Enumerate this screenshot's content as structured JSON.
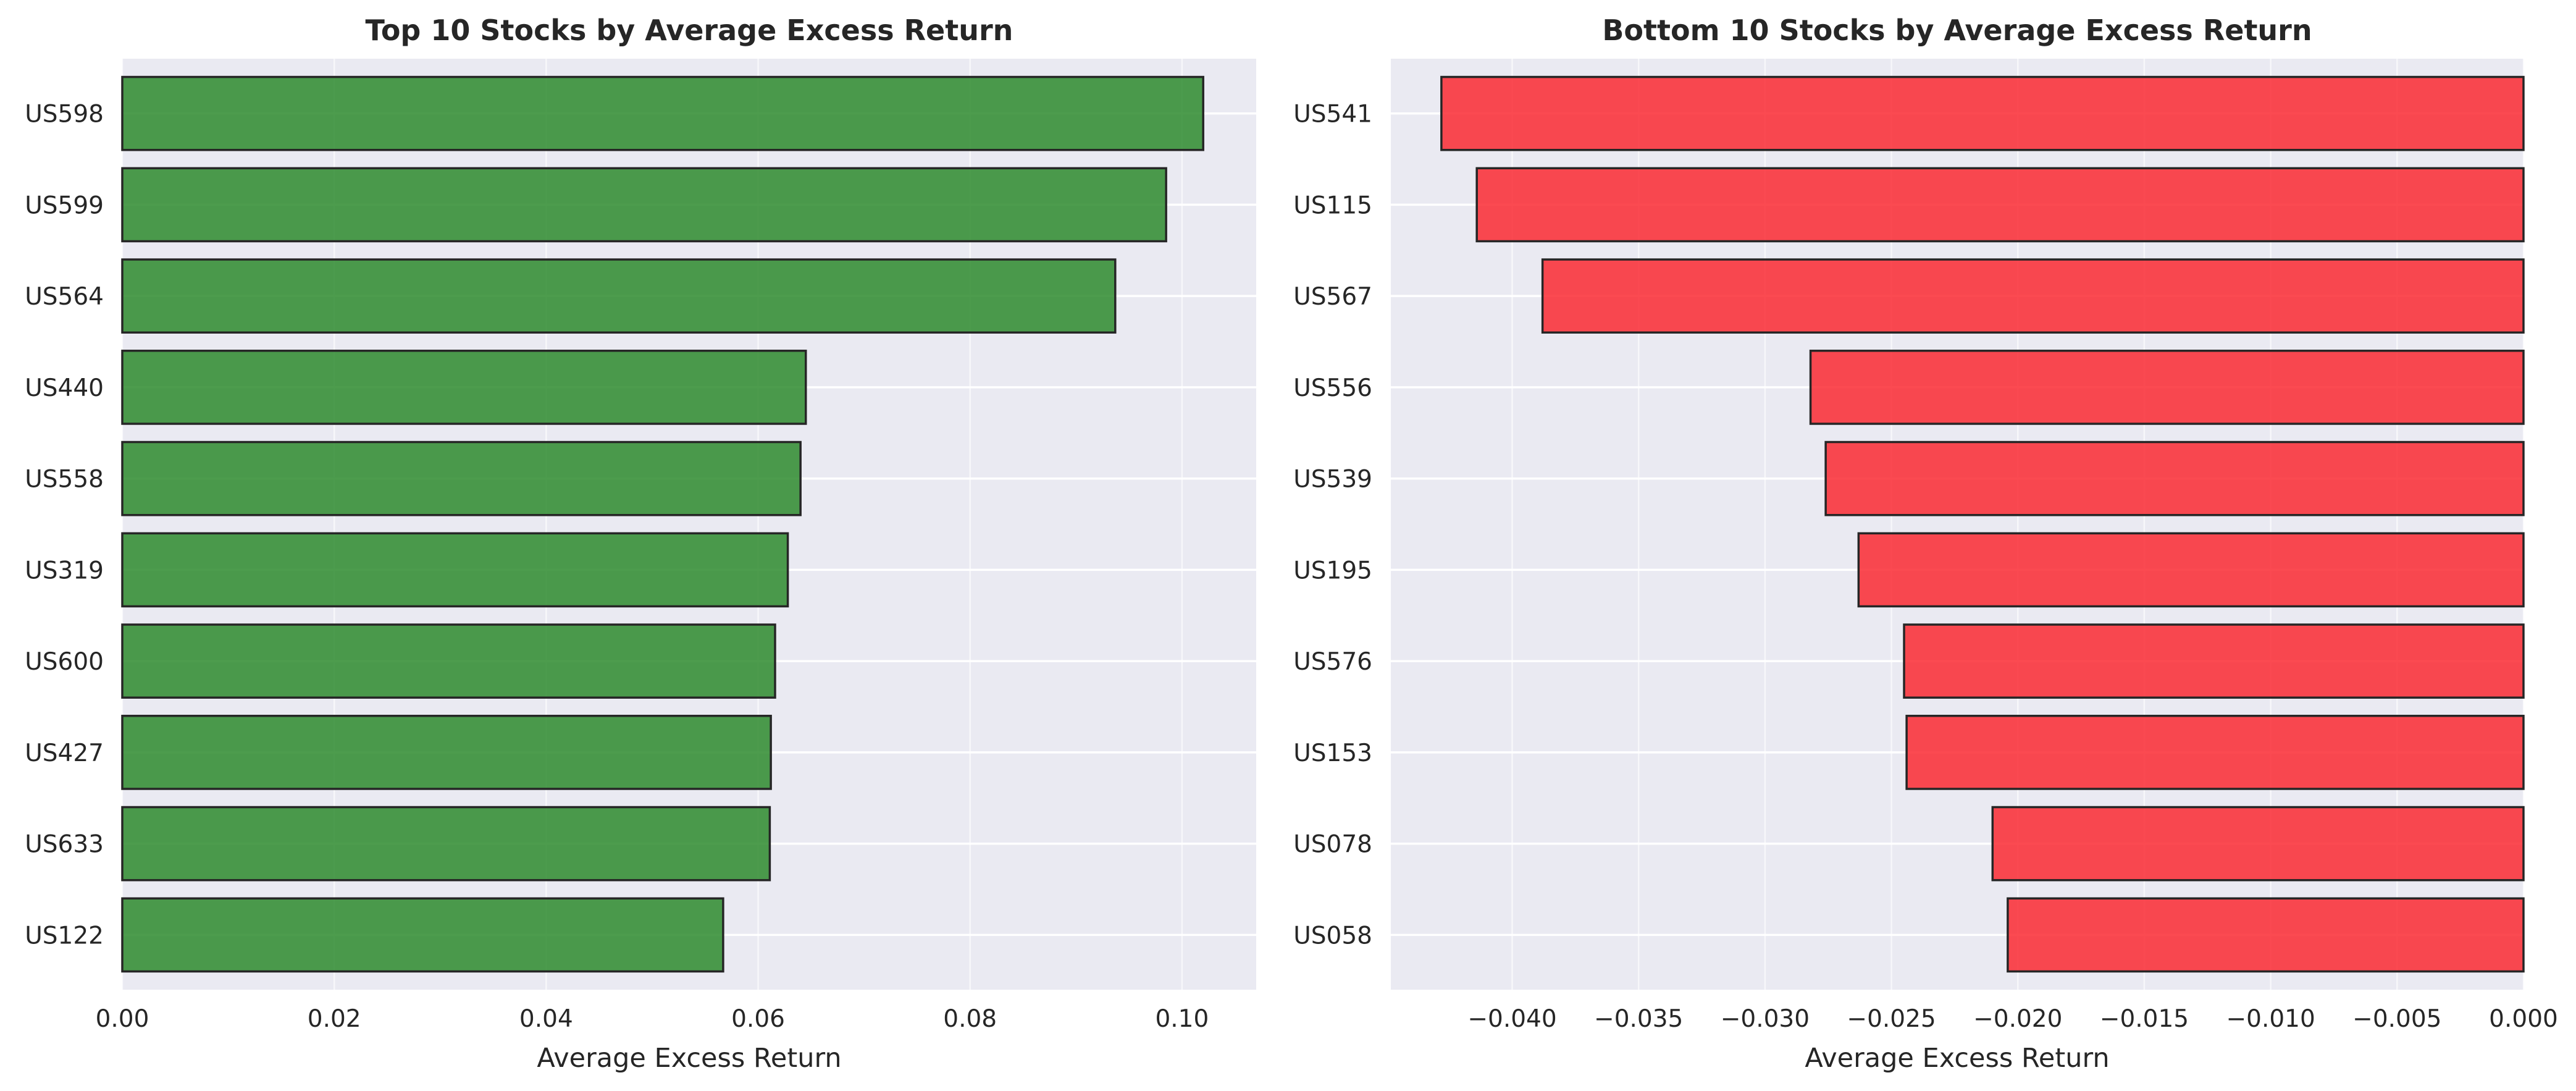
{
  "chart_data": [
    {
      "type": "bar",
      "orientation": "horizontal",
      "title": "Top 10 Stocks by Average Excess Return",
      "xlabel": "Average Excess Return",
      "ylabel": "",
      "categories": [
        "US598",
        "US599",
        "US564",
        "US440",
        "US558",
        "US319",
        "US600",
        "US427",
        "US633",
        "US122"
      ],
      "values": [
        0.102,
        0.0985,
        0.0937,
        0.0645,
        0.064,
        0.0628,
        0.0616,
        0.0612,
        0.0611,
        0.0567
      ],
      "xlim": [
        0,
        0.107
      ],
      "xticks": [
        0,
        0.02,
        0.04,
        0.06,
        0.08,
        0.1
      ],
      "xtick_labels": [
        "0.00",
        "0.02",
        "0.04",
        "0.06",
        "0.08",
        "0.10"
      ],
      "bar_color": "#2e8b2e",
      "grid": true
    },
    {
      "type": "bar",
      "orientation": "horizontal",
      "title": "Bottom 10 Stocks by Average Excess Return",
      "xlabel": "Average Excess Return",
      "ylabel": "",
      "categories": [
        "US541",
        "US115",
        "US567",
        "US556",
        "US539",
        "US195",
        "US576",
        "US153",
        "US078",
        "US058"
      ],
      "values": [
        -0.0428,
        -0.0414,
        -0.0388,
        -0.0282,
        -0.0276,
        -0.0263,
        -0.0245,
        -0.0244,
        -0.021,
        -0.0204
      ],
      "xlim": [
        -0.0448,
        0
      ],
      "xticks": [
        -0.04,
        -0.035,
        -0.03,
        -0.025,
        -0.02,
        -0.015,
        -0.01,
        -0.005,
        0
      ],
      "xtick_labels": [
        "−0.040",
        "−0.035",
        "−0.030",
        "−0.025",
        "−0.020",
        "−0.015",
        "−0.010",
        "−0.005",
        "0.000"
      ],
      "bar_color": "#fa2a32",
      "grid": true
    }
  ],
  "colors": {
    "plot_bg": "#eaeaf2",
    "grid": "#ffffff",
    "edge": "#262626"
  }
}
